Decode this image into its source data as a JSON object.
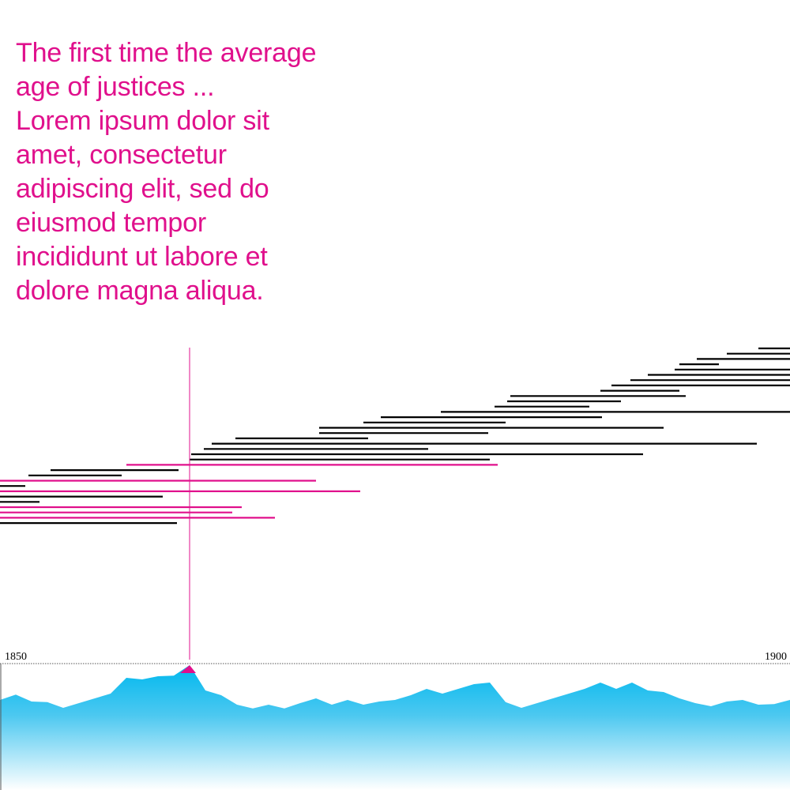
{
  "annotation": {
    "lines": [
      "The first time the average",
      "age of justices ...",
      "Lorem ipsum dolor sit",
      "amet, consectetur",
      "adipiscing elit, sed do",
      "eiusmod tempor",
      "incididunt ut labore et",
      "dolore magna aliqua."
    ]
  },
  "chart_data": [
    {
      "type": "timeline",
      "x_label_start": "1850",
      "x_label_end": "1900",
      "xlim": [
        1850,
        1900
      ],
      "marker_year": 1862,
      "colors": {
        "highlight": "#e0108c",
        "default": "#000000"
      },
      "bars": [
        {
          "start": 1898.0,
          "end": 1900.0,
          "highlight": false
        },
        {
          "start": 1896.0,
          "end": 1900.0,
          "highlight": false
        },
        {
          "start": 1894.1,
          "end": 1900.0,
          "highlight": false
        },
        {
          "start": 1893.0,
          "end": 1895.5,
          "highlight": false
        },
        {
          "start": 1892.7,
          "end": 1900.0,
          "highlight": false
        },
        {
          "start": 1891.0,
          "end": 1900.0,
          "highlight": false
        },
        {
          "start": 1889.9,
          "end": 1900.0,
          "highlight": false
        },
        {
          "start": 1888.7,
          "end": 1900.0,
          "highlight": false
        },
        {
          "start": 1888.0,
          "end": 1893.0,
          "highlight": false
        },
        {
          "start": 1882.3,
          "end": 1893.4,
          "highlight": false
        },
        {
          "start": 1882.1,
          "end": 1889.3,
          "highlight": false
        },
        {
          "start": 1881.3,
          "end": 1887.3,
          "highlight": false
        },
        {
          "start": 1877.9,
          "end": 1900.0,
          "highlight": false
        },
        {
          "start": 1874.1,
          "end": 1888.1,
          "highlight": false
        },
        {
          "start": 1873.0,
          "end": 1882.0,
          "highlight": false
        },
        {
          "start": 1870.2,
          "end": 1892.0,
          "highlight": false
        },
        {
          "start": 1870.2,
          "end": 1880.9,
          "highlight": false
        },
        {
          "start": 1864.9,
          "end": 1873.3,
          "highlight": false
        },
        {
          "start": 1863.4,
          "end": 1897.9,
          "highlight": false
        },
        {
          "start": 1862.9,
          "end": 1877.1,
          "highlight": false
        },
        {
          "start": 1862.1,
          "end": 1890.7,
          "highlight": false
        },
        {
          "start": 1862.0,
          "end": 1881.0,
          "highlight": false
        },
        {
          "start": 1858.0,
          "end": 1881.5,
          "highlight": true
        },
        {
          "start": 1853.2,
          "end": 1861.3,
          "highlight": false
        },
        {
          "start": 1851.8,
          "end": 1857.7,
          "highlight": false
        },
        {
          "start": 1850.0,
          "end": 1870.0,
          "highlight": true
        },
        {
          "start": 1850.0,
          "end": 1851.6,
          "highlight": false
        },
        {
          "start": 1850.0,
          "end": 1872.8,
          "highlight": true
        },
        {
          "start": 1850.0,
          "end": 1860.3,
          "highlight": false
        },
        {
          "start": 1850.0,
          "end": 1852.5,
          "highlight": false
        },
        {
          "start": 1850.0,
          "end": 1865.3,
          "highlight": true
        },
        {
          "start": 1850.0,
          "end": 1864.7,
          "highlight": true
        },
        {
          "start": 1850.0,
          "end": 1867.4,
          "highlight": true
        },
        {
          "start": 1850.0,
          "end": 1861.2,
          "highlight": false
        }
      ]
    },
    {
      "type": "area",
      "color": "#00b8ee",
      "x": [
        1850,
        1851,
        1852,
        1853,
        1854,
        1855,
        1856,
        1857,
        1858,
        1859,
        1860,
        1861,
        1862,
        1863,
        1864,
        1865,
        1866,
        1867,
        1868,
        1869,
        1870,
        1871,
        1872,
        1873,
        1874,
        1875,
        1876,
        1877,
        1878,
        1879,
        1880,
        1881,
        1882,
        1883,
        1884,
        1885,
        1886,
        1887,
        1888,
        1889,
        1890,
        1891,
        1892,
        1893,
        1894,
        1895,
        1896,
        1897,
        1898,
        1899,
        1900
      ],
      "values": [
        28.5,
        30.2,
        28.0,
        27.8,
        26.0,
        27.5,
        29.0,
        30.5,
        35.5,
        35.0,
        36.0,
        36.2,
        39.5,
        31.5,
        30.0,
        27.0,
        25.8,
        27.0,
        25.8,
        27.5,
        29.0,
        27.0,
        28.5,
        27.0,
        28.0,
        28.5,
        30.0,
        32.0,
        30.5,
        32.0,
        33.5,
        34.0,
        27.8,
        26.0,
        27.5,
        29.0,
        30.5,
        32.0,
        34.0,
        32.0,
        34.0,
        31.5,
        31.0,
        29.0,
        27.5,
        26.5,
        28.0,
        28.5,
        27.0,
        27.2,
        28.5
      ],
      "ylim": [
        0,
        40
      ]
    }
  ]
}
